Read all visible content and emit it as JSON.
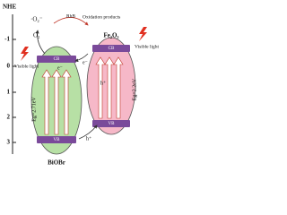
{
  "axis": {
    "label": "NHE",
    "ticks": [
      "-1",
      "0",
      "1",
      "2",
      "3"
    ]
  },
  "labels": {
    "superoxide": "·O₂⁻",
    "rhb": "RhB",
    "products": "Oxidation products",
    "oxygen": "O₂",
    "light_left": "Visible light",
    "light_right": "Visible light"
  },
  "biobr": {
    "name": "BiOBr",
    "cb": "CB",
    "vb": "VB",
    "gap": "Eg=2.71eV",
    "electron": "e⁻",
    "hole": "h⁺"
  },
  "fe2o3": {
    "name": "Fe₂O₃",
    "cb": "CB",
    "vb": "VB",
    "gap": "Eg=2.2eV",
    "electron": "e⁻",
    "hole": "h⁺"
  }
}
